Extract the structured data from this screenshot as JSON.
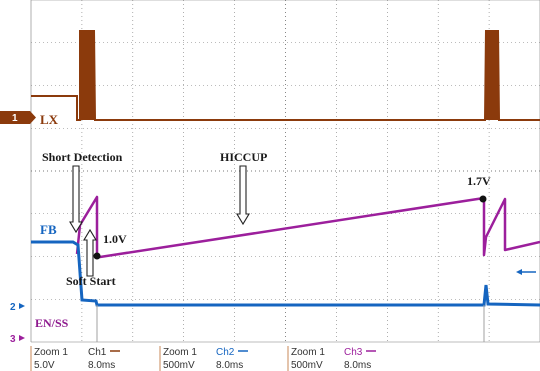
{
  "colors": {
    "lx": "#8b3a0c",
    "fb": "#1565c0",
    "ss": "#9c1f9c",
    "grid": "#7a7a7a"
  },
  "chart_data": {
    "type": "line",
    "timebase": "8.0ms",
    "channels": [
      {
        "marker": "1",
        "name": "LX",
        "scale": "5.0V",
        "zoom": "Zoom 1",
        "ch": "Ch1",
        "time": "8.0ms"
      },
      {
        "marker": "2",
        "name": "FB",
        "scale": "500mV",
        "zoom": "Zoom 1",
        "ch": "Ch2",
        "time": "8.0ms"
      },
      {
        "marker": "3",
        "name": "EN/SS",
        "scale": "500mV",
        "zoom": "Zoom 1",
        "ch": "Ch3",
        "time": "8.0ms"
      }
    ],
    "annotations": [
      {
        "id": "short",
        "text": "Short Detection"
      },
      {
        "id": "hiccup",
        "text": "HICCUP"
      },
      {
        "id": "softstart",
        "text": "Soft Start"
      },
      {
        "id": "v1",
        "text": "1.0V",
        "value_v": 1.0
      },
      {
        "id": "v2",
        "text": "1.7V",
        "value_v": 1.7
      }
    ],
    "ss_ramp": {
      "start_v": 1.0,
      "end_v": 1.7
    }
  }
}
